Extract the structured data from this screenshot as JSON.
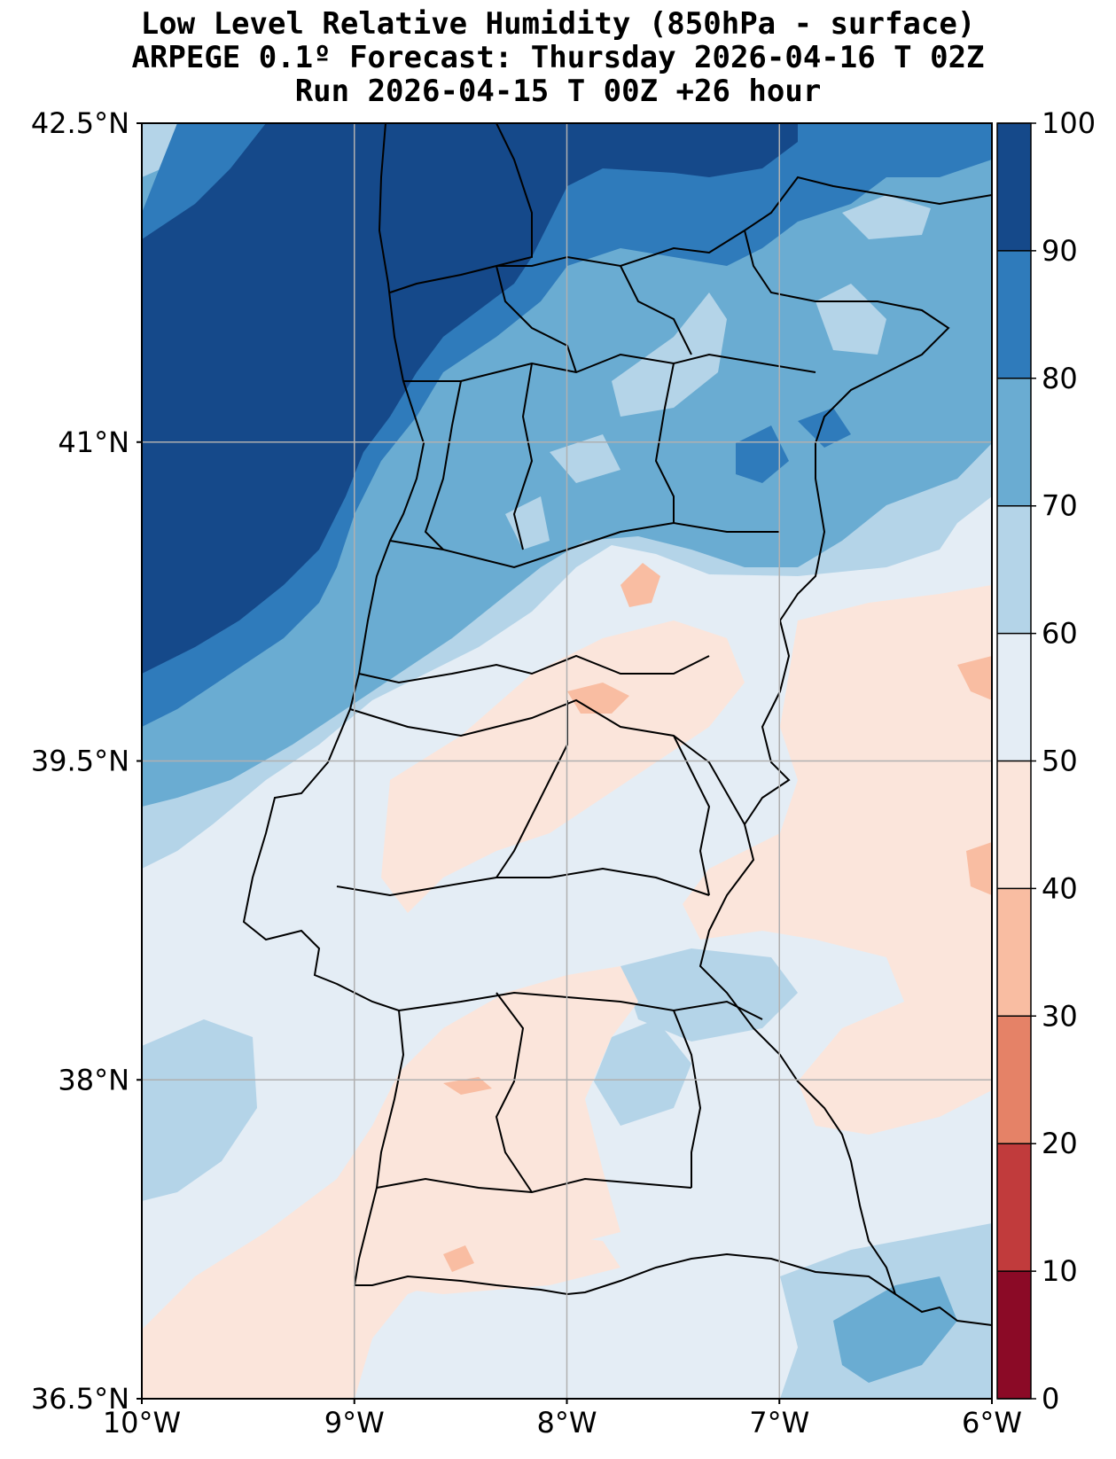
{
  "title": {
    "line1": "Low Level Relative Humidity (850hPa - surface)",
    "line2": "ARPEGE 0.1º Forecast: Thursday 2026-04-16 T 02Z",
    "line3": "Run 2026-04-15 T 00Z +26 hour"
  },
  "map": {
    "lon_range": [
      -10,
      -6
    ],
    "lat_range": [
      36.5,
      42.5
    ],
    "lon_ticks": [
      {
        "value": -10,
        "label": "10°W"
      },
      {
        "value": -9,
        "label": "9°W"
      },
      {
        "value": -8,
        "label": "8°W"
      },
      {
        "value": -7,
        "label": "7°W"
      },
      {
        "value": -6,
        "label": "6°W"
      }
    ],
    "lat_ticks": [
      {
        "value": 42.5,
        "label": "42.5°N"
      },
      {
        "value": 41,
        "label": "41°N"
      },
      {
        "value": 39.5,
        "label": "39.5°N"
      },
      {
        "value": 38,
        "label": "38°N"
      },
      {
        "value": 36.5,
        "label": "36.5°N"
      }
    ],
    "gridlines": true
  },
  "colorbar": {
    "levels": [
      0,
      10,
      20,
      30,
      40,
      50,
      60,
      70,
      80,
      90,
      100
    ],
    "colors": [
      "#8b0a26",
      "#c13b3c",
      "#e58267",
      "#f9bda2",
      "#fbe5db",
      "#e4edf5",
      "#b4d4e8",
      "#6aacd2",
      "#2f7bbb",
      "#15498a"
    ],
    "tick_labels": [
      "0",
      "10",
      "20",
      "30",
      "40",
      "50",
      "60",
      "70",
      "80",
      "90",
      "100"
    ]
  }
}
